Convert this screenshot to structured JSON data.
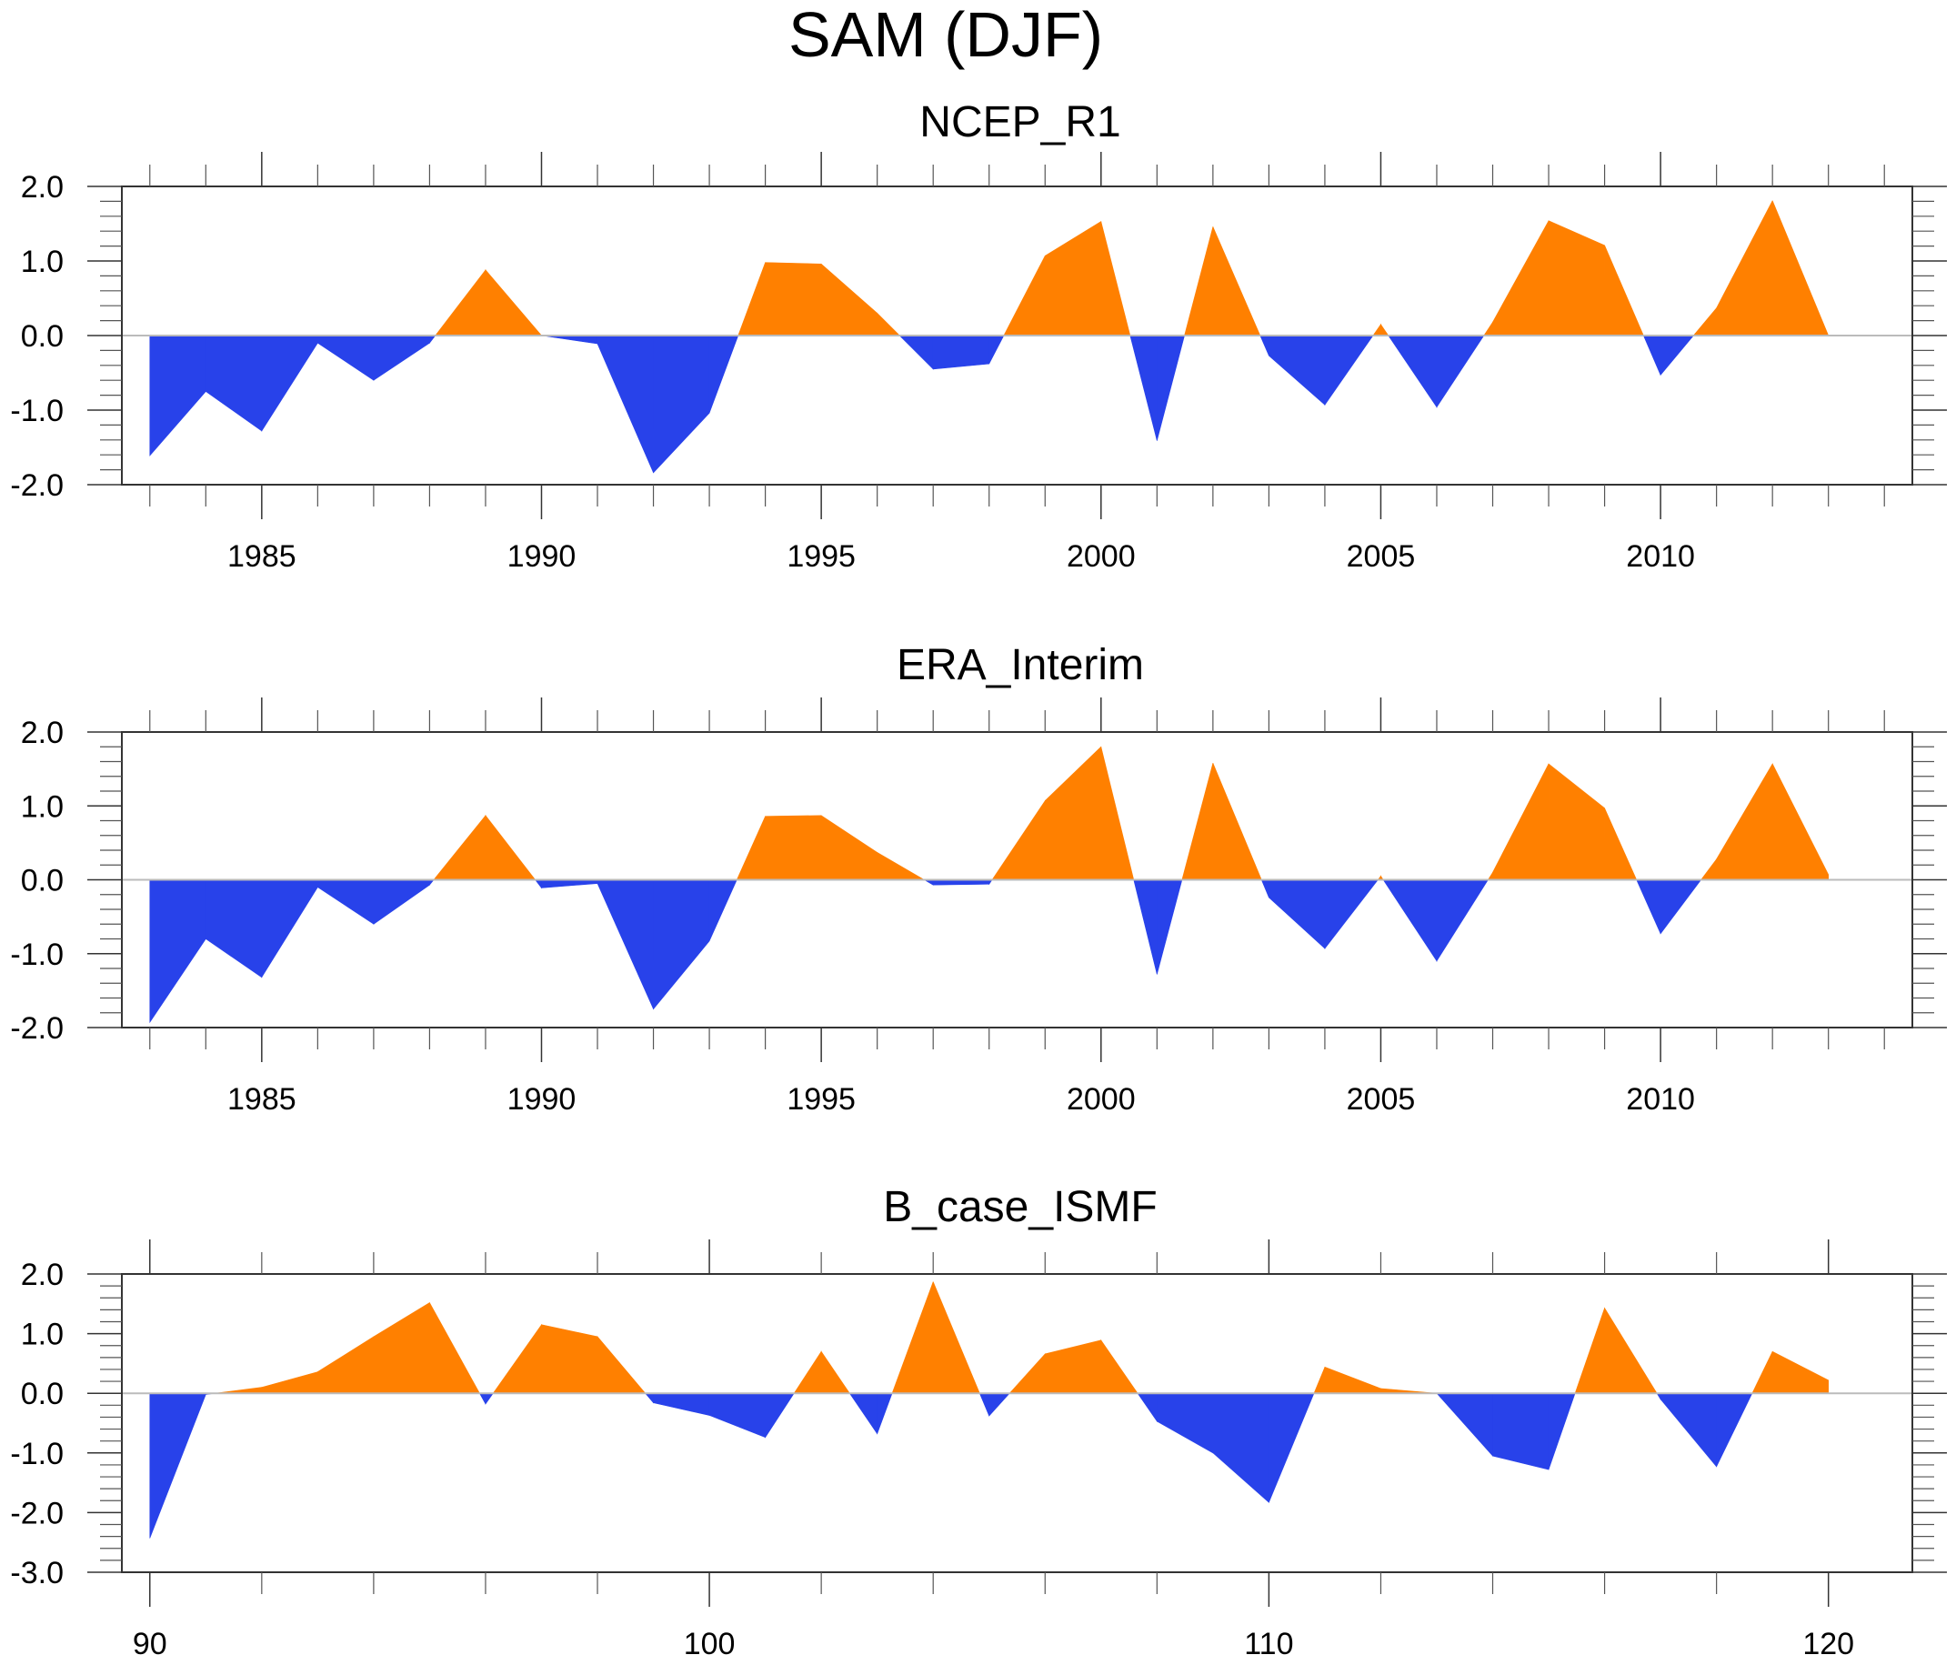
{
  "figure": {
    "title": "SAM (DJF)"
  },
  "chart_data": [
    {
      "type": "area",
      "title": "NCEP_R1",
      "xlabel": "",
      "ylabel": "",
      "xlim": [
        1982.5,
        2014.5
      ],
      "ylim": [
        -2.0,
        2.0
      ],
      "yticks": [
        -2.0,
        -1.0,
        0.0,
        1.0,
        2.0
      ],
      "ytick_labels": [
        "-2.0",
        "-1.0",
        "0.0",
        "1.0",
        "2.0"
      ],
      "yminor_step": 0.2,
      "xticks_major": [
        1985,
        1990,
        1995,
        2000,
        2005,
        2010
      ],
      "xtick_labels": [
        "1985",
        "1990",
        "1995",
        "2000",
        "2005",
        "2010"
      ],
      "xminor_step": 1,
      "grid": false,
      "positive_color": "#FF8000",
      "negative_color": "#2842EA",
      "x": [
        1983,
        1984,
        1985,
        1986,
        1987,
        1988,
        1989,
        1990,
        1991,
        1992,
        1993,
        1994,
        1995,
        1996,
        1997,
        1998,
        1999,
        2000,
        2001,
        2002,
        2003,
        2004,
        2005,
        2006,
        2007,
        2008,
        2009,
        2010,
        2011,
        2012,
        2013
      ],
      "values": [
        -1.61,
        -0.75,
        -1.28,
        -0.1,
        -0.6,
        -0.1,
        0.88,
        0.0,
        -0.11,
        -1.84,
        -1.04,
        0.98,
        0.96,
        0.3,
        -0.45,
        -0.38,
        1.07,
        1.53,
        -1.41,
        1.46,
        -0.27,
        -0.93,
        0.15,
        -0.96,
        0.18,
        1.54,
        1.21,
        -0.53,
        0.37,
        1.81,
        0.0
      ]
    },
    {
      "type": "area",
      "title": "ERA_Interim",
      "xlabel": "",
      "ylabel": "",
      "xlim": [
        1982.5,
        2014.5
      ],
      "ylim": [
        -2.0,
        2.0
      ],
      "yticks": [
        -2.0,
        -1.0,
        0.0,
        1.0,
        2.0
      ],
      "ytick_labels": [
        "-2.0",
        "-1.0",
        "0.0",
        "1.0",
        "2.0"
      ],
      "yminor_step": 0.2,
      "xticks_major": [
        1985,
        1990,
        1995,
        2000,
        2005,
        2010
      ],
      "xtick_labels": [
        "1985",
        "1990",
        "1995",
        "2000",
        "2005",
        "2010"
      ],
      "xminor_step": 1,
      "grid": false,
      "positive_color": "#FF8000",
      "negative_color": "#2842EA",
      "x": [
        1983,
        1984,
        1985,
        1986,
        1987,
        1988,
        1989,
        1990,
        1991,
        1992,
        1993,
        1994,
        1995,
        1996,
        1997,
        1998,
        1999,
        2000,
        2001,
        2002,
        2003,
        2004,
        2005,
        2006,
        2007,
        2008,
        2009,
        2010,
        2011,
        2012,
        2013
      ],
      "values": [
        -1.93,
        -0.8,
        -1.32,
        -0.1,
        -0.6,
        -0.07,
        0.87,
        -0.11,
        -0.05,
        -1.75,
        -0.83,
        0.86,
        0.87,
        0.37,
        -0.07,
        -0.06,
        1.07,
        1.8,
        -1.28,
        1.58,
        -0.24,
        -0.93,
        0.05,
        -1.1,
        0.1,
        1.57,
        0.97,
        -0.73,
        0.28,
        1.57,
        0.07
      ]
    },
    {
      "type": "area",
      "title": "B_case_ISMF",
      "xlabel": "",
      "ylabel": "",
      "xlim": [
        89.5,
        121.5
      ],
      "ylim": [
        -3.0,
        2.0
      ],
      "yticks": [
        -3.0,
        -2.0,
        -1.0,
        0.0,
        1.0,
        2.0
      ],
      "ytick_labels": [
        "-3.0",
        "-2.0",
        "-1.0",
        "0.0",
        "1.0",
        "2.0"
      ],
      "yminor_step": 0.2,
      "xticks_major": [
        90,
        100,
        110,
        120
      ],
      "xtick_labels": [
        "90",
        "100",
        "110",
        "120"
      ],
      "xminor_step": 2,
      "grid": false,
      "positive_color": "#FF8000",
      "negative_color": "#2842EA",
      "x": [
        90,
        91,
        92,
        93,
        94,
        95,
        96,
        97,
        98,
        99,
        100,
        101,
        102,
        103,
        104,
        105,
        106,
        107,
        108,
        109,
        110,
        111,
        112,
        113,
        114,
        115,
        116,
        117,
        118,
        119,
        120
      ],
      "values": [
        -2.43,
        -0.02,
        0.1,
        0.36,
        0.95,
        1.52,
        -0.18,
        1.15,
        0.95,
        -0.16,
        -0.37,
        -0.74,
        0.7,
        -0.68,
        1.87,
        -0.38,
        0.66,
        0.89,
        -0.47,
        -1.0,
        -1.83,
        0.44,
        0.08,
        0.0,
        -1.05,
        -1.28,
        1.43,
        -0.1,
        -1.23,
        0.7,
        0.22
      ]
    }
  ]
}
